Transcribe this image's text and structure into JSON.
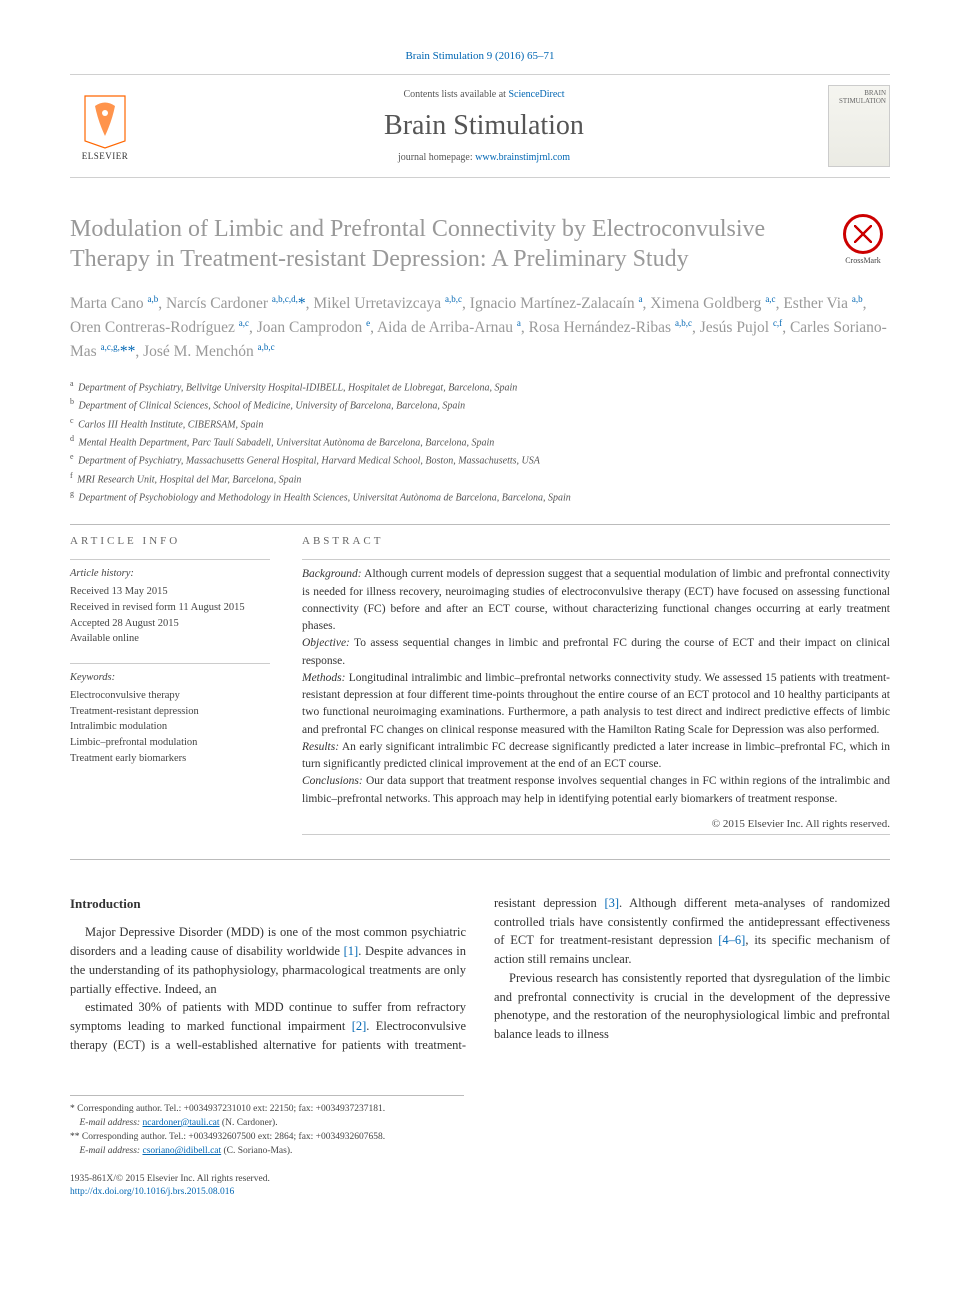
{
  "header": {
    "citation": "Brain Stimulation 9 (2016) 65–71",
    "contents_prefix": "Contents lists available at ",
    "contents_link": "ScienceDirect",
    "journal_name": "Brain Stimulation",
    "homepage_prefix": "journal homepage: ",
    "homepage_link": "www.brainstimjrnl.com",
    "publisher_label": "ELSEVIER",
    "cover_text": "BRAIN STIMULATION"
  },
  "crossmark_label": "CrossMark",
  "title": "Modulation of Limbic and Prefrontal Connectivity by Electroconvulsive Therapy in Treatment-resistant Depression: A Preliminary Study",
  "authors_html": "Marta Cano <sup>a,b</sup>, Narcís Cardoner <sup>a,b,c,d,</sup><span class='star'>*</span>, Mikel Urretavizcaya <sup>a,b,c</sup>, Ignacio Martínez-Zalacaín <sup>a</sup>, Ximena Goldberg <sup>a,c</sup>, Esther Via <sup>a,b</sup>, Oren Contreras-Rodríguez <sup>a,c</sup>, Joan Camprodon <sup>e</sup>, Aida de Arriba-Arnau <sup>a</sup>, Rosa Hernández-Ribas <sup>a,b,c</sup>, Jesús Pujol <sup>c,f</sup>, Carles Soriano-Mas <sup>a,c,g,</sup><span class='star'>**</span>, José M. Menchón <sup>a,b,c</sup>",
  "affiliations": [
    {
      "sup": "a",
      "text": "Department of Psychiatry, Bellvitge University Hospital-IDIBELL, Hospitalet de Llobregat, Barcelona, Spain"
    },
    {
      "sup": "b",
      "text": "Department of Clinical Sciences, School of Medicine, University of Barcelona, Barcelona, Spain"
    },
    {
      "sup": "c",
      "text": "Carlos III Health Institute, CIBERSAM, Spain"
    },
    {
      "sup": "d",
      "text": "Mental Health Department, Parc Taulí Sabadell, Universitat Autònoma de Barcelona, Barcelona, Spain"
    },
    {
      "sup": "e",
      "text": "Department of Psychiatry, Massachusetts General Hospital, Harvard Medical School, Boston, Massachusetts, USA"
    },
    {
      "sup": "f",
      "text": "MRI Research Unit, Hospital del Mar, Barcelona, Spain"
    },
    {
      "sup": "g",
      "text": "Department of Psychobiology and Methodology in Health Sciences, Universitat Autònoma de Barcelona, Barcelona, Spain"
    }
  ],
  "article_info": {
    "heading": "ARTICLE INFO",
    "history_label": "Article history:",
    "history": [
      "Received 13 May 2015",
      "Received in revised form 11 August 2015",
      "Accepted 28 August 2015",
      "Available online"
    ],
    "keywords_label": "Keywords:",
    "keywords": [
      "Electroconvulsive therapy",
      "Treatment-resistant depression",
      "Intralimbic modulation",
      "Limbic–prefrontal modulation",
      "Treatment early biomarkers"
    ]
  },
  "abstract": {
    "heading": "ABSTRACT",
    "sections": [
      {
        "label": "Background:",
        "text": "Although current models of depression suggest that a sequential modulation of limbic and prefrontal connectivity is needed for illness recovery, neuroimaging studies of electroconvulsive therapy (ECT) have focused on assessing functional connectivity (FC) before and after an ECT course, without characterizing functional changes occurring at early treatment phases."
      },
      {
        "label": "Objective:",
        "text": "To assess sequential changes in limbic and prefrontal FC during the course of ECT and their impact on clinical response."
      },
      {
        "label": "Methods:",
        "text": "Longitudinal intralimbic and limbic–prefrontal networks connectivity study. We assessed 15 patients with treatment-resistant depression at four different time-points throughout the entire course of an ECT protocol and 10 healthy participants at two functional neuroimaging examinations. Furthermore, a path analysis to test direct and indirect predictive effects of limbic and prefrontal FC changes on clinical response measured with the Hamilton Rating Scale for Depression was also performed."
      },
      {
        "label": "Results:",
        "text": "An early significant intralimbic FC decrease significantly predicted a later increase in limbic–prefrontal FC, which in turn significantly predicted clinical improvement at the end of an ECT course."
      },
      {
        "label": "Conclusions:",
        "text": "Our data support that treatment response involves sequential changes in FC within regions of the intralimbic and limbic–prefrontal networks. This approach may help in identifying potential early biomarkers of treatment response."
      }
    ],
    "copyright": "© 2015 Elsevier Inc. All rights reserved."
  },
  "body": {
    "intro_heading": "Introduction",
    "p1a": "Major Depressive Disorder (MDD) is one of the most common psychiatric disorders and a leading cause of disability worldwide ",
    "ref1": "[1]",
    "p1b": ". Despite advances in the understanding of its pathophysiology, pharmacological treatments are only partially effective. Indeed, an",
    "p2a": "estimated 30% of patients with MDD continue to suffer from refractory symptoms leading to marked functional impairment ",
    "ref2": "[2]",
    "p2b": ". Electroconvulsive therapy (ECT) is a well-established alternative for patients with treatment-resistant depression ",
    "ref3": "[3]",
    "p2c": ". Although different meta-analyses of randomized controlled trials have consistently confirmed the antidepressant effectiveness of ECT for treatment-resistant depression ",
    "ref46": "[4–6]",
    "p2d": ", its specific mechanism of action still remains unclear.",
    "p3": "Previous research has consistently reported that dysregulation of the limbic and prefrontal connectivity is crucial in the development of the depressive phenotype, and the restoration of the neurophysiological limbic and prefrontal balance leads to illness"
  },
  "footnotes": {
    "c1": "Corresponding author. Tel.: +0034937231010 ext: 22150; fax: +0034937237181.",
    "c1_email_label": "E-mail address: ",
    "c1_email": "ncardoner@tauli.cat",
    "c1_name": " (N. Cardoner).",
    "c2": "Corresponding author. Tel.: +0034932607500 ext: 2864; fax: +0034932607658.",
    "c2_email_label": "E-mail address: ",
    "c2_email": "csoriano@idibell.cat",
    "c2_name": " (C. Soriano-Mas)."
  },
  "footer": {
    "issn_line": "1935-861X/© 2015 Elsevier Inc. All rights reserved.",
    "doi_label": "http://dx.doi.org/10.1016/j.brs.2015.08.016"
  },
  "colors": {
    "link": "#0066b3",
    "title_grey": "#999999",
    "orange": "#ff6600",
    "red": "#c00"
  }
}
